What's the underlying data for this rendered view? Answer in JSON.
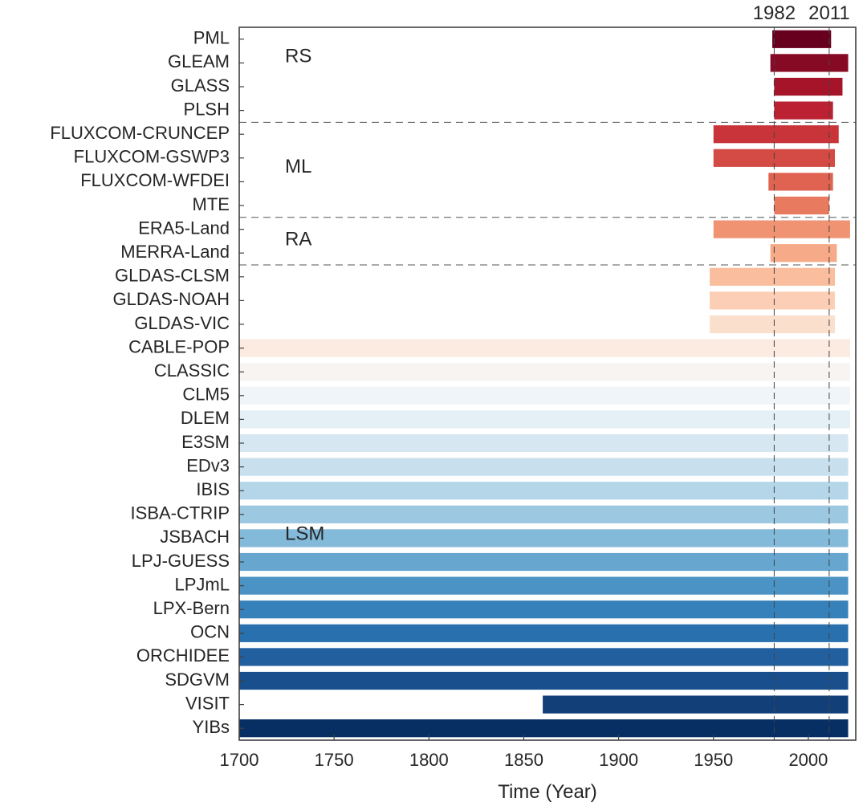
{
  "chart_data": {
    "type": "bar",
    "orientation": "horizontal",
    "xlabel": "Time (Year)",
    "ylabel": "",
    "xlim": [
      1700,
      2025
    ],
    "xticks": [
      1700,
      1750,
      1800,
      1850,
      1900,
      1950,
      2000
    ],
    "reference_lines": [
      {
        "year": 1982,
        "label": "1982"
      },
      {
        "year": 2011,
        "label": "2011"
      }
    ],
    "groups": [
      {
        "label": "RS",
        "first": 0,
        "last": 3
      },
      {
        "label": "ML",
        "first": 4,
        "last": 7
      },
      {
        "label": "RA",
        "first": 8,
        "last": 9
      },
      {
        "label": "LSM",
        "first": 10,
        "last": 29
      }
    ],
    "bars": [
      {
        "name": "PML",
        "start": 1981,
        "end": 2012,
        "color": "#67001f"
      },
      {
        "name": "GLEAM",
        "start": 1980,
        "end": 2021,
        "color": "#860a24"
      },
      {
        "name": "GLASS",
        "start": 1982,
        "end": 2018,
        "color": "#a51429"
      },
      {
        "name": "PLSH",
        "start": 1982,
        "end": 2013,
        "color": "#bb2132"
      },
      {
        "name": "FLUXCOM-CRUNCEP",
        "start": 1950,
        "end": 2016,
        "color": "#c83439"
      },
      {
        "name": "FLUXCOM-GSWP3",
        "start": 1950,
        "end": 2014,
        "color": "#d44a44"
      },
      {
        "name": "FLUXCOM-WFDEI",
        "start": 1979,
        "end": 2013,
        "color": "#e06251"
      },
      {
        "name": "MTE",
        "start": 1982,
        "end": 2011,
        "color": "#e87a5f"
      },
      {
        "name": "ERA5-Land",
        "start": 1950,
        "end": 2022,
        "color": "#f09373"
      },
      {
        "name": "MERRA-Land",
        "start": 1980,
        "end": 2015,
        "color": "#f6aa88"
      },
      {
        "name": "GLDAS-CLSM",
        "start": 1948,
        "end": 2014,
        "color": "#fabd9e"
      },
      {
        "name": "GLDAS-NOAH",
        "start": 1948,
        "end": 2014,
        "color": "#fcceb5"
      },
      {
        "name": "GLDAS-VIC",
        "start": 1948,
        "end": 2014,
        "color": "#fbdfcd"
      },
      {
        "name": "CABLE-POP",
        "start": 1700,
        "end": 2022,
        "color": "#fbebe1"
      },
      {
        "name": "CLASSIC",
        "start": 1700,
        "end": 2022,
        "color": "#f8f4f1"
      },
      {
        "name": "CLM5",
        "start": 1700,
        "end": 2022,
        "color": "#f0f5f9"
      },
      {
        "name": "DLEM",
        "start": 1700,
        "end": 2022,
        "color": "#e4eff6"
      },
      {
        "name": "E3SM",
        "start": 1700,
        "end": 2021,
        "color": "#d6e7f1"
      },
      {
        "name": "EDv3",
        "start": 1700,
        "end": 2021,
        "color": "#c8e0ed"
      },
      {
        "name": "IBIS",
        "start": 1700,
        "end": 2021,
        "color": "#b5d5e9"
      },
      {
        "name": "ISBA-CTRIP",
        "start": 1700,
        "end": 2021,
        "color": "#9dc8e1"
      },
      {
        "name": "JSBACH",
        "start": 1700,
        "end": 2021,
        "color": "#83b9d9"
      },
      {
        "name": "LPJ-GUESS",
        "start": 1700,
        "end": 2021,
        "color": "#66a6cf"
      },
      {
        "name": "LPJmL",
        "start": 1700,
        "end": 2021,
        "color": "#4a93c4"
      },
      {
        "name": "LPX-Bern",
        "start": 1700,
        "end": 2021,
        "color": "#3681ba"
      },
      {
        "name": "OCN",
        "start": 1700,
        "end": 2021,
        "color": "#2870ae"
      },
      {
        "name": "ORCHIDEE",
        "start": 1700,
        "end": 2021,
        "color": "#225f9f"
      },
      {
        "name": "SDGVM",
        "start": 1700,
        "end": 2021,
        "color": "#1a4f8d"
      },
      {
        "name": "VISIT",
        "start": 1860,
        "end": 2021,
        "color": "#123f78"
      },
      {
        "name": "YIBs",
        "start": 1700,
        "end": 2021,
        "color": "#082f63"
      }
    ]
  }
}
